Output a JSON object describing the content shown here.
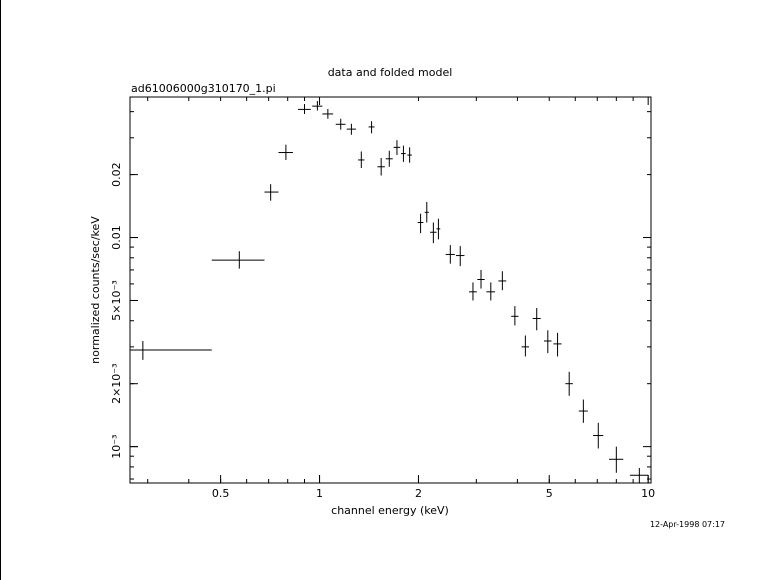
{
  "window": {
    "timestamp": "12-Apr-1998 07:17"
  },
  "chart_data": {
    "type": "scatter",
    "title": "data and folded model",
    "subtitle": "ad61006000g310170_1.pi",
    "xlabel": "channel energy (keV)",
    "ylabel": "normalized counts/sec/keV",
    "xscale": "log",
    "yscale": "log",
    "xlim": [
      0.265,
      10.2
    ],
    "ylim": [
      0.00067,
      0.047
    ],
    "xticks": [
      {
        "value": 0.5,
        "label": "0.5"
      },
      {
        "value": 1,
        "label": "1"
      },
      {
        "value": 2,
        "label": "2"
      },
      {
        "value": 5,
        "label": "5"
      },
      {
        "value": 10,
        "label": "10"
      }
    ],
    "yticks": [
      {
        "value": 0.001,
        "label": "10⁻³"
      },
      {
        "value": 0.002,
        "label": "2×10⁻³"
      },
      {
        "value": 0.005,
        "label": "5×10⁻³"
      },
      {
        "value": 0.01,
        "label": "0.01"
      },
      {
        "value": 0.02,
        "label": "0.02"
      }
    ],
    "series": [
      {
        "points": [
          {
            "x": 0.29,
            "xlo": 0.265,
            "xhi": 0.47,
            "y": 0.0029,
            "ylo": 0.0026,
            "yhi": 0.0032
          },
          {
            "x": 0.57,
            "xlo": 0.47,
            "xhi": 0.68,
            "y": 0.0078,
            "ylo": 0.0071,
            "yhi": 0.0086
          },
          {
            "x": 0.71,
            "xlo": 0.68,
            "xhi": 0.75,
            "y": 0.0165,
            "ylo": 0.015,
            "yhi": 0.018
          },
          {
            "x": 0.79,
            "xlo": 0.75,
            "xhi": 0.83,
            "y": 0.0255,
            "ylo": 0.0235,
            "yhi": 0.0278
          },
          {
            "x": 0.9,
            "xlo": 0.86,
            "xhi": 0.94,
            "y": 0.041,
            "ylo": 0.039,
            "yhi": 0.0435
          },
          {
            "x": 0.985,
            "xlo": 0.95,
            "xhi": 1.02,
            "y": 0.0425,
            "ylo": 0.0405,
            "yhi": 0.045
          },
          {
            "x": 1.06,
            "xlo": 1.02,
            "xhi": 1.1,
            "y": 0.039,
            "ylo": 0.037,
            "yhi": 0.0412
          },
          {
            "x": 1.16,
            "xlo": 1.12,
            "xhi": 1.2,
            "y": 0.0348,
            "ylo": 0.0328,
            "yhi": 0.037
          },
          {
            "x": 1.25,
            "xlo": 1.21,
            "xhi": 1.29,
            "y": 0.033,
            "ylo": 0.031,
            "yhi": 0.035
          },
          {
            "x": 1.34,
            "xlo": 1.31,
            "xhi": 1.37,
            "y": 0.0235,
            "ylo": 0.0215,
            "yhi": 0.0258
          },
          {
            "x": 1.44,
            "xlo": 1.41,
            "xhi": 1.47,
            "y": 0.0338,
            "ylo": 0.0315,
            "yhi": 0.036
          },
          {
            "x": 1.54,
            "xlo": 1.5,
            "xhi": 1.58,
            "y": 0.0218,
            "ylo": 0.0198,
            "yhi": 0.024
          },
          {
            "x": 1.63,
            "xlo": 1.59,
            "xhi": 1.67,
            "y": 0.0238,
            "ylo": 0.0218,
            "yhi": 0.026
          },
          {
            "x": 1.72,
            "xlo": 1.68,
            "xhi": 1.76,
            "y": 0.027,
            "ylo": 0.0248,
            "yhi": 0.0292
          },
          {
            "x": 1.8,
            "xlo": 1.77,
            "xhi": 1.83,
            "y": 0.0252,
            "ylo": 0.023,
            "yhi": 0.0275
          },
          {
            "x": 1.88,
            "xlo": 1.85,
            "xhi": 1.91,
            "y": 0.0248,
            "ylo": 0.0228,
            "yhi": 0.027
          },
          {
            "x": 2.03,
            "xlo": 1.99,
            "xhi": 2.07,
            "y": 0.0118,
            "ylo": 0.0105,
            "yhi": 0.013
          },
          {
            "x": 2.12,
            "xlo": 2.09,
            "xhi": 2.15,
            "y": 0.0132,
            "ylo": 0.0118,
            "yhi": 0.0148
          },
          {
            "x": 2.22,
            "xlo": 2.17,
            "xhi": 2.27,
            "y": 0.0106,
            "ylo": 0.0094,
            "yhi": 0.0118
          },
          {
            "x": 2.3,
            "xlo": 2.27,
            "xhi": 2.33,
            "y": 0.011,
            "ylo": 0.0098,
            "yhi": 0.0123
          },
          {
            "x": 2.5,
            "xlo": 2.42,
            "xhi": 2.58,
            "y": 0.0083,
            "ylo": 0.0075,
            "yhi": 0.0092
          },
          {
            "x": 2.68,
            "xlo": 2.6,
            "xhi": 2.76,
            "y": 0.0082,
            "ylo": 0.0073,
            "yhi": 0.0091
          },
          {
            "x": 2.93,
            "xlo": 2.85,
            "xhi": 3.01,
            "y": 0.0055,
            "ylo": 0.005,
            "yhi": 0.0061
          },
          {
            "x": 3.1,
            "xlo": 3.02,
            "xhi": 3.18,
            "y": 0.0063,
            "ylo": 0.0057,
            "yhi": 0.007
          },
          {
            "x": 3.32,
            "xlo": 3.22,
            "xhi": 3.42,
            "y": 0.0055,
            "ylo": 0.005,
            "yhi": 0.0061
          },
          {
            "x": 3.6,
            "xlo": 3.5,
            "xhi": 3.7,
            "y": 0.0062,
            "ylo": 0.0056,
            "yhi": 0.0069
          },
          {
            "x": 3.93,
            "xlo": 3.83,
            "xhi": 4.03,
            "y": 0.0042,
            "ylo": 0.0038,
            "yhi": 0.0047
          },
          {
            "x": 4.23,
            "xlo": 4.12,
            "xhi": 4.34,
            "y": 0.003,
            "ylo": 0.0027,
            "yhi": 0.0034
          },
          {
            "x": 4.58,
            "xlo": 4.45,
            "xhi": 4.71,
            "y": 0.0041,
            "ylo": 0.0036,
            "yhi": 0.0046
          },
          {
            "x": 4.95,
            "xlo": 4.82,
            "xhi": 5.08,
            "y": 0.0032,
            "ylo": 0.0028,
            "yhi": 0.0036
          },
          {
            "x": 5.3,
            "xlo": 5.15,
            "xhi": 5.45,
            "y": 0.0031,
            "ylo": 0.0027,
            "yhi": 0.0035
          },
          {
            "x": 5.75,
            "xlo": 5.6,
            "xhi": 5.9,
            "y": 0.002,
            "ylo": 0.00175,
            "yhi": 0.00228
          },
          {
            "x": 6.35,
            "xlo": 6.15,
            "xhi": 6.55,
            "y": 0.00148,
            "ylo": 0.0013,
            "yhi": 0.00168
          },
          {
            "x": 7.05,
            "xlo": 6.8,
            "xhi": 7.3,
            "y": 0.00113,
            "ylo": 0.00098,
            "yhi": 0.0013
          },
          {
            "x": 8.0,
            "xlo": 7.6,
            "xhi": 8.4,
            "y": 0.00087,
            "ylo": 0.00075,
            "yhi": 0.001
          },
          {
            "x": 9.4,
            "xlo": 8.8,
            "xhi": 10.0,
            "y": 0.00073,
            "ylo": 0.00067,
            "yhi": 0.00079
          }
        ]
      }
    ]
  }
}
